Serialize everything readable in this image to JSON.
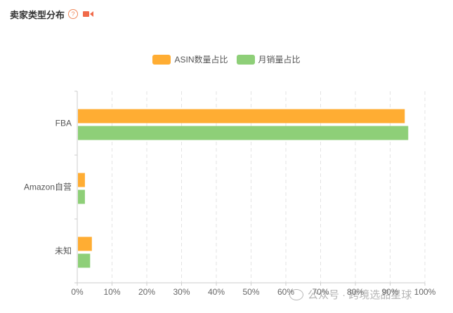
{
  "header": {
    "title": "卖家类型分布",
    "help_symbol": "?"
  },
  "icons": {
    "help": "help-circle-icon",
    "video": "video-camera-icon"
  },
  "watermark": {
    "text": "公众号 · 跨境选品星球"
  },
  "colors": {
    "asin": "#FFAD33",
    "sales": "#8ECF78",
    "grid": "#e3e3e3",
    "axis": "#cccccc",
    "accent": "#f06a4a"
  },
  "chart_data": {
    "type": "bar",
    "orientation": "horizontal",
    "categories": [
      "FBA",
      "Amazon自营",
      "未知"
    ],
    "series": [
      {
        "name": "ASIN数量占比",
        "values": [
          94,
          2,
          4
        ]
      },
      {
        "name": "月销量占比",
        "values": [
          95,
          2,
          3.5
        ]
      }
    ],
    "xlim": [
      0,
      100
    ],
    "x_ticks": [
      "0%",
      "10%",
      "20%",
      "30%",
      "40%",
      "50%",
      "60%",
      "70%",
      "80%",
      "90%",
      "100%"
    ],
    "grid": true,
    "legend_position": "top-center"
  }
}
